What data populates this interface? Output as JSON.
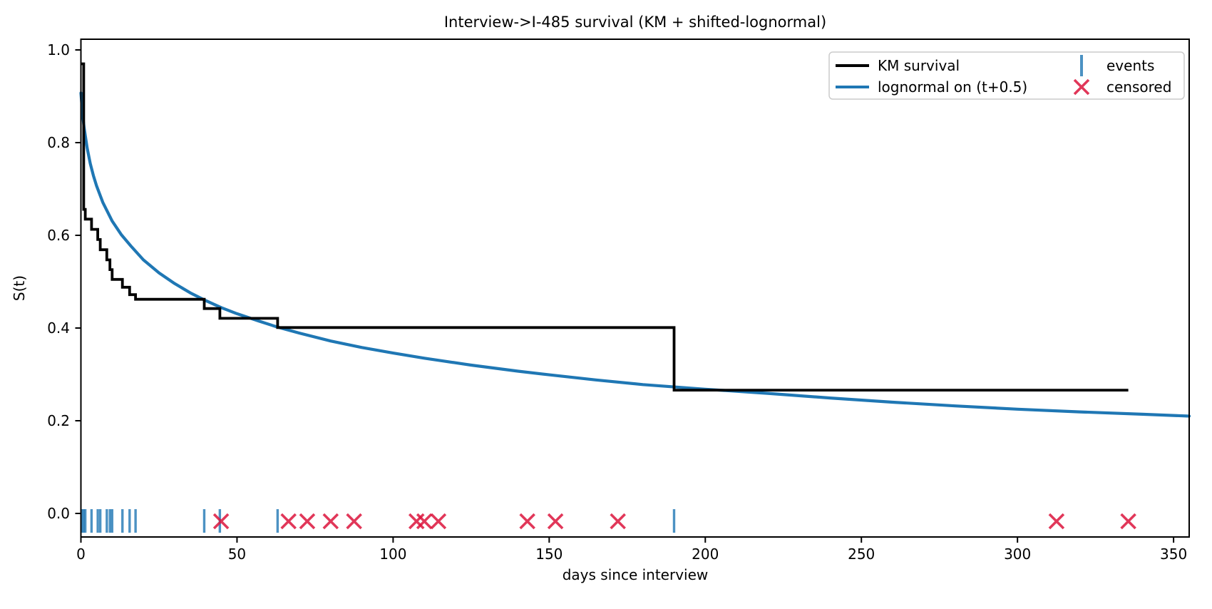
{
  "chart_data": {
    "type": "line",
    "title": "Interview->I-485 survival (KM + shifted-lognormal)",
    "xlabel": "days since interview",
    "ylabel": "S(t)",
    "xlim": [
      0,
      355
    ],
    "ylim": [
      -0.051,
      1.023
    ],
    "grid": false,
    "legend_position": "upper right",
    "xticks": {
      "values": [
        0,
        50,
        100,
        150,
        200,
        250,
        300,
        350
      ],
      "labels": [
        "0",
        "50",
        "100",
        "150",
        "200",
        "250",
        "300",
        "350"
      ]
    },
    "yticks": {
      "values": [
        0.0,
        0.2,
        0.4,
        0.6,
        0.8,
        1.0
      ],
      "labels": [
        "0.0",
        "0.2",
        "0.4",
        "0.6",
        "0.8",
        "1.0"
      ]
    },
    "series": [
      {
        "name": "KM survival",
        "type": "step",
        "color": "#000000",
        "start_s": 0.97,
        "end_t": 335.5,
        "steps": [
          [
            0.9,
            0.656
          ],
          [
            1.4,
            0.635
          ],
          [
            3.4,
            0.613
          ],
          [
            5.4,
            0.591
          ],
          [
            6.2,
            0.569
          ],
          [
            8.3,
            0.547
          ],
          [
            9.3,
            0.526
          ],
          [
            10.0,
            0.505
          ],
          [
            13.3,
            0.488
          ],
          [
            15.6,
            0.472
          ],
          [
            17.5,
            0.462
          ],
          [
            39.5,
            0.442
          ],
          [
            44.5,
            0.421
          ],
          [
            63.0,
            0.401
          ],
          [
            190.0,
            0.266
          ]
        ]
      },
      {
        "name": "lognormal on (t+0.5)",
        "type": "smooth",
        "color": "#1f77b4",
        "points": [
          [
            0,
            0.907
          ],
          [
            0.5,
            0.864
          ],
          [
            1,
            0.833
          ],
          [
            2,
            0.788
          ],
          [
            3,
            0.755
          ],
          [
            4,
            0.729
          ],
          [
            5,
            0.707
          ],
          [
            7,
            0.671
          ],
          [
            10,
            0.631
          ],
          [
            13,
            0.601
          ],
          [
            16,
            0.577
          ],
          [
            20,
            0.547
          ],
          [
            25,
            0.519
          ],
          [
            30,
            0.496
          ],
          [
            35,
            0.476
          ],
          [
            40,
            0.459
          ],
          [
            45,
            0.444
          ],
          [
            50,
            0.431
          ],
          [
            57,
            0.415
          ],
          [
            63,
            0.402
          ],
          [
            70,
            0.389
          ],
          [
            80,
            0.372
          ],
          [
            90,
            0.358
          ],
          [
            100,
            0.346
          ],
          [
            110,
            0.335
          ],
          [
            125,
            0.32
          ],
          [
            140,
            0.307
          ],
          [
            150,
            0.299
          ],
          [
            165,
            0.288
          ],
          [
            180,
            0.278
          ],
          [
            200,
            0.268
          ],
          [
            220,
            0.259
          ],
          [
            240,
            0.249
          ],
          [
            260,
            0.24
          ],
          [
            280,
            0.232
          ],
          [
            300,
            0.225
          ],
          [
            320,
            0.219
          ],
          [
            340,
            0.214
          ],
          [
            355,
            0.21
          ]
        ]
      }
    ],
    "rug": {
      "events": {
        "name": "events",
        "color": "#1f77b4",
        "times": [
          0.4,
          0.9,
          1.4,
          3.4,
          5.4,
          6.2,
          8.3,
          9.3,
          10.0,
          13.3,
          15.6,
          17.5,
          39.5,
          44.5,
          63,
          190
        ]
      },
      "censored": {
        "name": "censored",
        "color": "#dc143c",
        "times": [
          44.9,
          66.5,
          72.5,
          80,
          87.5,
          107.5,
          110,
          114.5,
          143,
          152,
          172,
          312.5,
          335.5
        ]
      }
    },
    "legend": {
      "km_label": "KM survival",
      "lognormal_label": "lognormal on (t+0.5)",
      "events_label": "events",
      "censored_label": "censored"
    },
    "colors": {
      "km": "#000000",
      "lognormal": "#1f77b4",
      "events": "#1f77b4",
      "censored": "#dc143c",
      "spine": "#000000",
      "legend_border": "#cccccc"
    }
  }
}
